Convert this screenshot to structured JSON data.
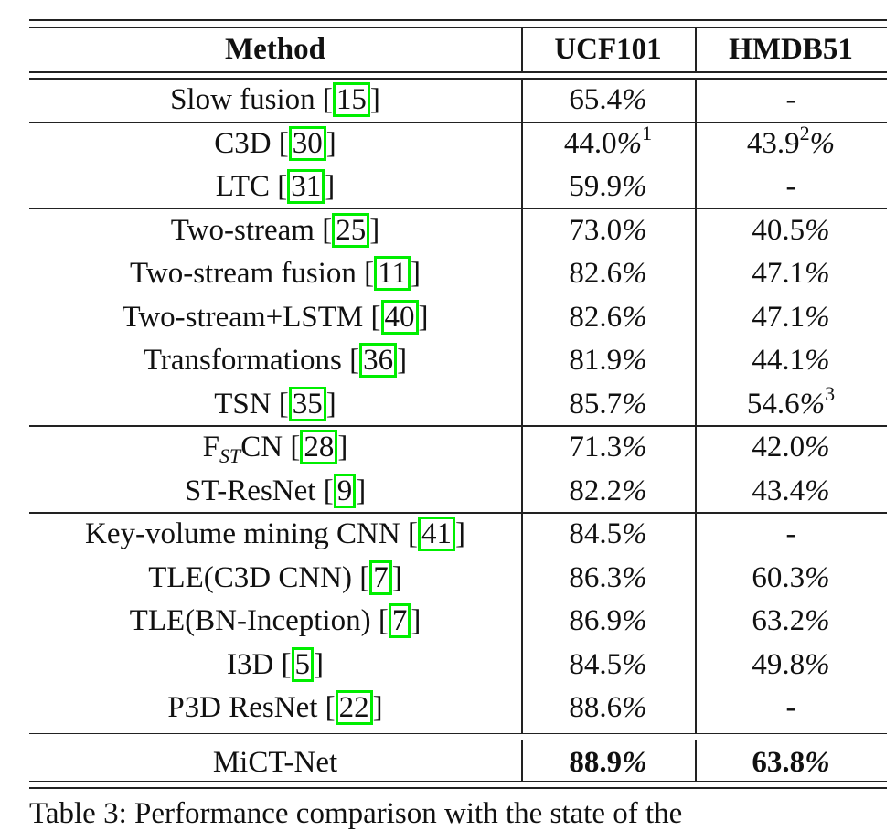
{
  "table": {
    "headers": [
      "Method",
      "UCF101",
      "HMDB51"
    ],
    "groups": [
      [
        {
          "name": "Slow fusion",
          "ref": "15",
          "ucf": {
            "value": "65.4",
            "pct": "%"
          },
          "hmdb": {
            "value": "-"
          }
        }
      ],
      [
        {
          "name": "C3D",
          "ref": "30",
          "ucf": {
            "value": "44.0",
            "pct": "%",
            "sup": "1"
          },
          "hmdb": {
            "value": "43.9",
            "sup_before_pct": "2",
            "pct": "%"
          }
        },
        {
          "name": "LTC",
          "ref": "31",
          "ucf": {
            "value": "59.9",
            "pct": "%"
          },
          "hmdb": {
            "value": "-"
          }
        }
      ],
      [
        {
          "name": "Two-stream",
          "ref": "25",
          "ucf": {
            "value": "73.0",
            "pct": "%"
          },
          "hmdb": {
            "value": "40.5",
            "pct": "%"
          }
        },
        {
          "name": "Two-stream fusion",
          "ref": "11",
          "ucf": {
            "value": "82.6",
            "pct": "%"
          },
          "hmdb": {
            "value": "47.1",
            "pct": "%"
          }
        },
        {
          "name": "Two-stream+LSTM",
          "ref": "40",
          "ucf": {
            "value": "82.6",
            "pct": "%"
          },
          "hmdb": {
            "value": "47.1",
            "pct": "%"
          }
        },
        {
          "name": "Transformations",
          "ref": "36",
          "ucf": {
            "value": "81.9",
            "pct": "%"
          },
          "hmdb": {
            "value": "44.1",
            "pct": "%"
          }
        },
        {
          "name": "TSN",
          "ref": "35",
          "ucf": {
            "value": "85.7",
            "pct": "%"
          },
          "hmdb": {
            "value": "54.6",
            "pct": "%",
            "sup": "3"
          }
        }
      ],
      [
        {
          "name": "F",
          "name_sub": "ST",
          "name_post": "CN",
          "ref": "28",
          "ucf": {
            "value": "71.3",
            "pct": "%"
          },
          "hmdb": {
            "value": "42.0",
            "pct": "%"
          }
        },
        {
          "name": "ST-ResNet",
          "ref": "9",
          "ucf": {
            "value": "82.2",
            "pct": "%"
          },
          "hmdb": {
            "value": "43.4",
            "pct": "%"
          }
        }
      ],
      [
        {
          "name": "Key-volume mining CNN",
          "ref": "41",
          "ucf": {
            "value": "84.5",
            "pct": "%"
          },
          "hmdb": {
            "value": "-"
          }
        },
        {
          "name": "TLE(C3D CNN)",
          "ref": "7",
          "ucf": {
            "value": "86.3",
            "pct": "%"
          },
          "hmdb": {
            "value": "60.3",
            "pct": "%"
          }
        },
        {
          "name": "TLE(BN-Inception)",
          "ref": "7",
          "ucf": {
            "value": "86.9",
            "pct": "%"
          },
          "hmdb": {
            "value": "63.2",
            "pct": "%"
          }
        },
        {
          "name": "I3D",
          "ref": "5",
          "ucf": {
            "value": "84.5",
            "pct": "%"
          },
          "hmdb": {
            "value": "49.8",
            "pct": "%"
          }
        },
        {
          "name": "P3D ResNet",
          "ref": "22",
          "ucf": {
            "value": "88.6",
            "pct": "%"
          },
          "hmdb": {
            "value": "-"
          }
        }
      ]
    ],
    "final_row": {
      "name": "MiCT-Net",
      "ucf": {
        "value": "88.9",
        "pct": "%",
        "bold": true
      },
      "hmdb": {
        "value": "63.8",
        "pct": "%",
        "bold": true
      }
    },
    "cite_color": "#00ee00"
  },
  "caption": "Table 3: Performance comparison with the state of the"
}
